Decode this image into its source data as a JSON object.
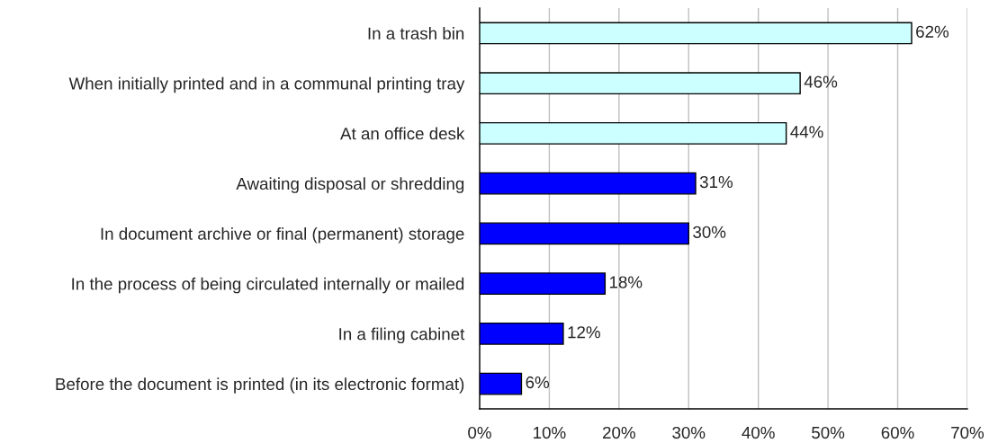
{
  "chart_data": {
    "type": "bar",
    "orientation": "horizontal",
    "categories": [
      "In a trash bin",
      "When initially printed and in a communal printing tray",
      "At an office desk",
      "Awaiting disposal or shredding",
      "In document archive or final (permanent) storage",
      "In the process of being circulated internally or mailed",
      "In a filing cabinet",
      "Before the document is printed (in its electronic format)"
    ],
    "values": [
      62,
      46,
      44,
      31,
      30,
      18,
      12,
      6
    ],
    "colors": [
      "#ccffff",
      "#ccffff",
      "#ccffff",
      "#0000ff",
      "#0000ff",
      "#0000ff",
      "#0000ff",
      "#0000ff"
    ],
    "value_labels": [
      "62%",
      "46%",
      "44%",
      "31%",
      "30%",
      "18%",
      "12%",
      "6%"
    ],
    "xlim": [
      0,
      70
    ],
    "xticks": [
      {
        "value": 0,
        "label": "0%"
      },
      {
        "value": 10,
        "label": "10%"
      },
      {
        "value": 20,
        "label": "20%"
      },
      {
        "value": 30,
        "label": "30%"
      },
      {
        "value": 40,
        "label": "40%"
      },
      {
        "value": 50,
        "label": "50%"
      },
      {
        "value": 60,
        "label": "60%"
      },
      {
        "value": 70,
        "label": "70%"
      }
    ],
    "grid": "x"
  }
}
